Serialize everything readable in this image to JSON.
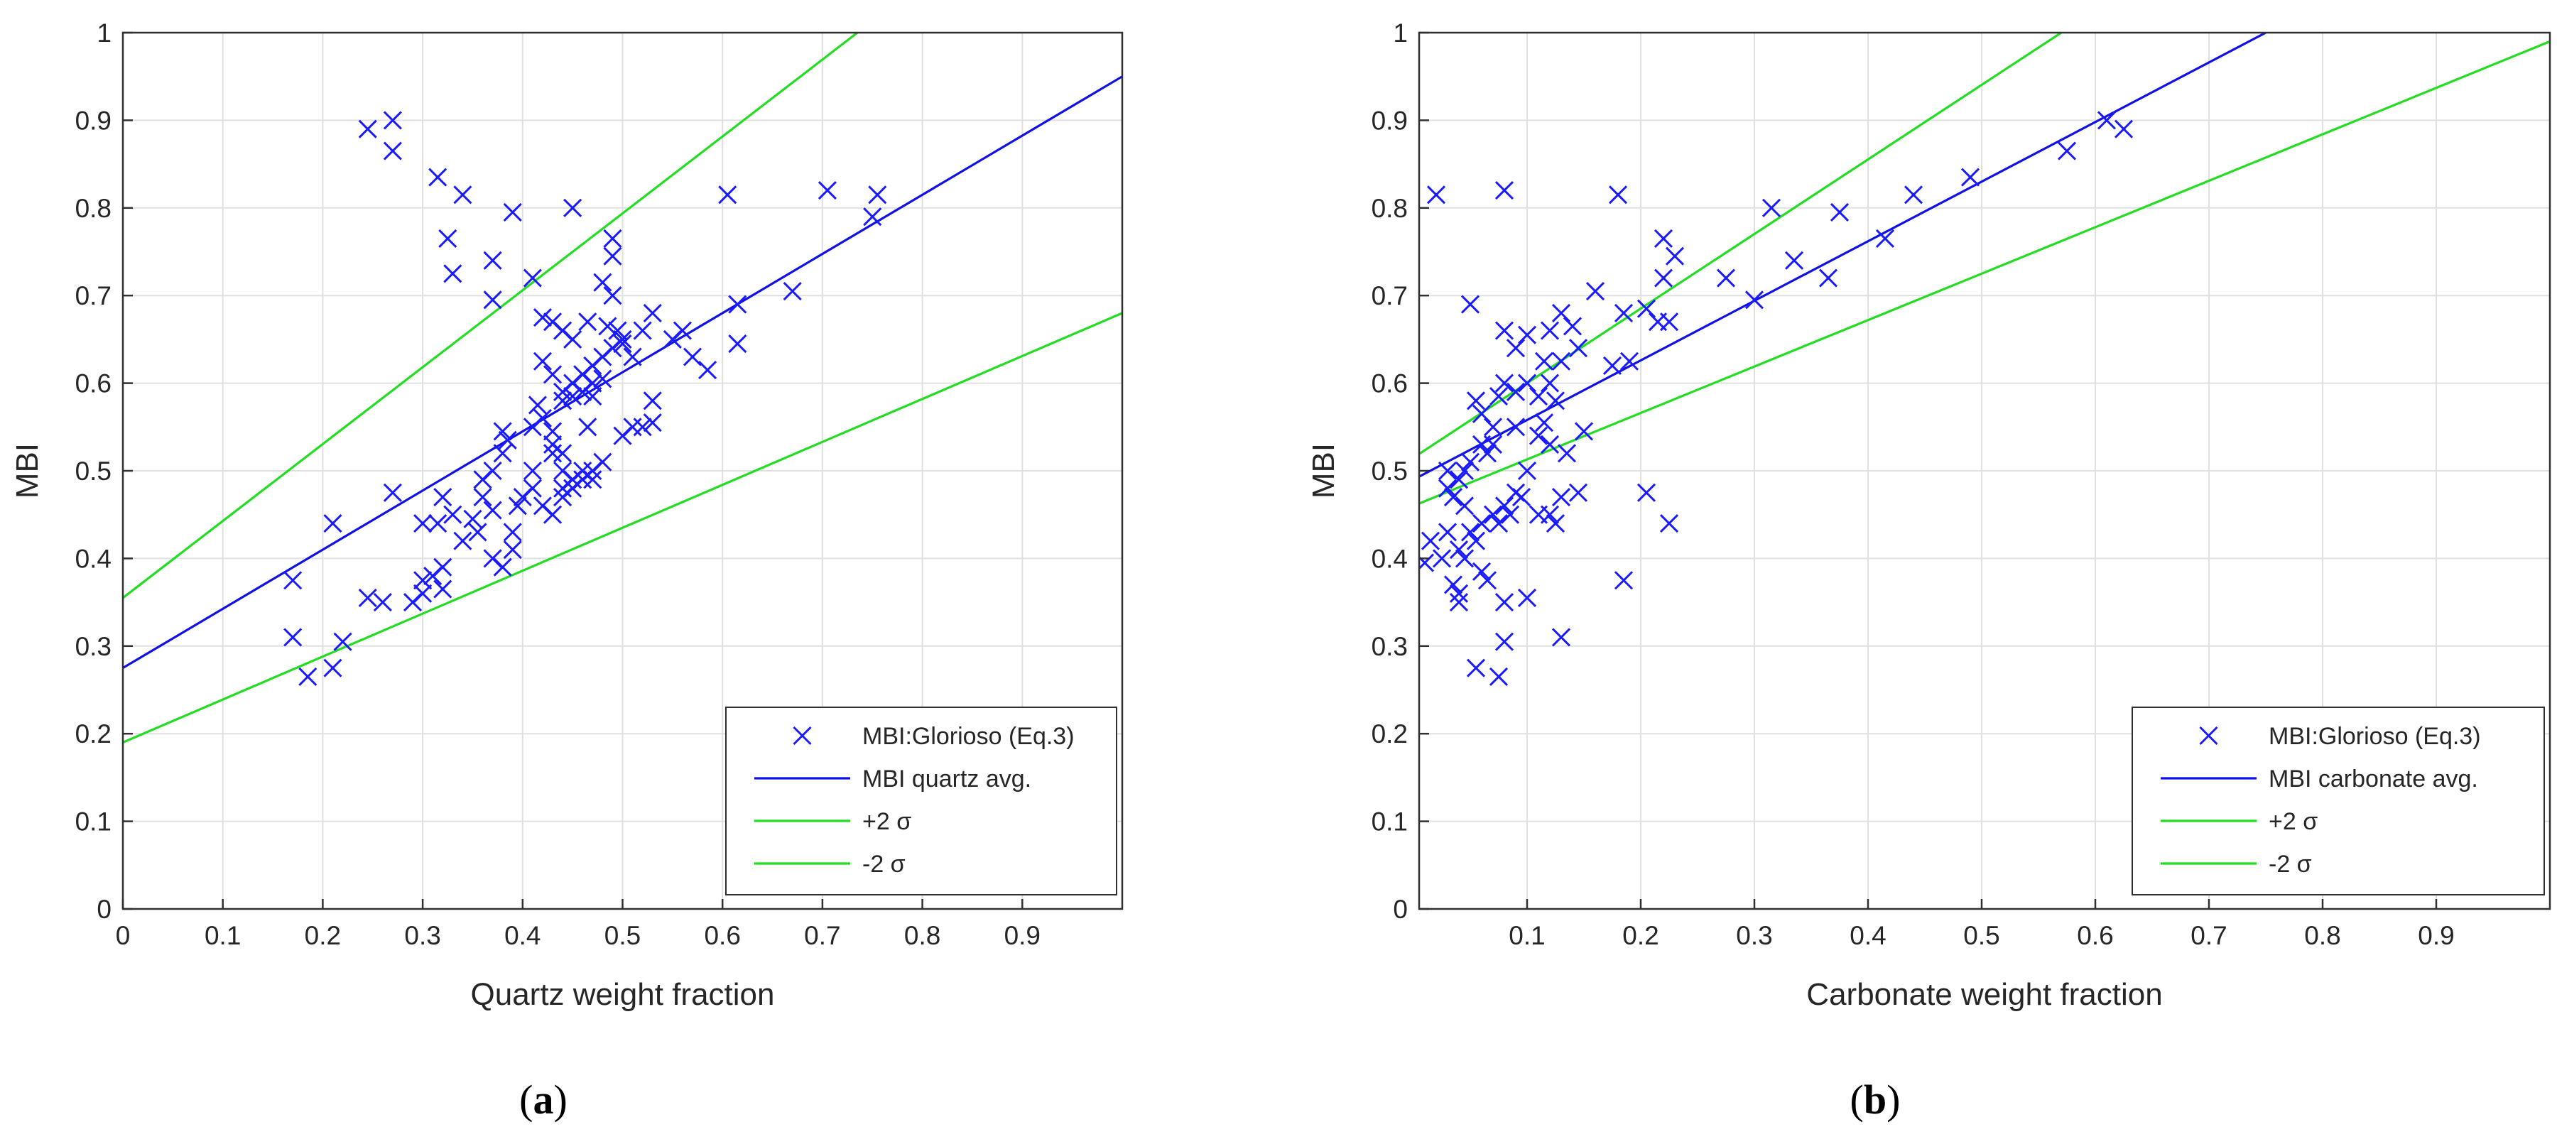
{
  "figure": {
    "panels": [
      {
        "caption_letter": "a",
        "caption_open": "(",
        "caption_close": ")"
      },
      {
        "caption_letter": "b",
        "caption_open": "(",
        "caption_close": ")"
      }
    ]
  },
  "colors": {
    "markers": "#1a1aff",
    "avg_line": "#1010e8",
    "sigma_line": "#22dd22",
    "grid": "#e0e0e0",
    "axes": "#303030"
  },
  "chart_data": [
    {
      "type": "scatter",
      "title": "",
      "xlabel": "Quartz weight fraction",
      "ylabel": "MBI",
      "xlim": [
        0,
        1
      ],
      "ylim": [
        0,
        1
      ],
      "xticks": [
        0,
        0.1,
        0.2,
        0.3,
        0.4,
        0.5,
        0.6,
        0.7,
        0.8,
        0.9
      ],
      "xtick_labels": [
        "0",
        "0.1",
        "0.2",
        "0.3",
        "0.4",
        "0.5",
        "0.6",
        "0.7",
        "0.8",
        "0.9"
      ],
      "yticks": [
        0,
        0.1,
        0.2,
        0.3,
        0.4,
        0.5,
        0.6,
        0.7,
        0.8,
        0.9,
        1
      ],
      "ytick_labels": [
        "0",
        "0.1",
        "0.2",
        "0.3",
        "0.4",
        "0.5",
        "0.6",
        "0.7",
        "0.8",
        "0.9",
        "1"
      ],
      "grid": true,
      "legend_position": "bottom-right",
      "series": [
        {
          "name": "MBI:Glorioso (Eq.3)",
          "kind": "scatter",
          "marker": "x",
          "points": [
            [
              0.245,
              0.89
            ],
            [
              0.27,
              0.9
            ],
            [
              0.27,
              0.865
            ],
            [
              0.315,
              0.835
            ],
            [
              0.34,
              0.815
            ],
            [
              0.325,
              0.765
            ],
            [
              0.33,
              0.725
            ],
            [
              0.39,
              0.795
            ],
            [
              0.45,
              0.8
            ],
            [
              0.37,
              0.74
            ],
            [
              0.37,
              0.695
            ],
            [
              0.41,
              0.72
            ],
            [
              0.49,
              0.765
            ],
            [
              0.49,
              0.745
            ],
            [
              0.48,
              0.715
            ],
            [
              0.49,
              0.7
            ],
            [
              0.485,
              0.665
            ],
            [
              0.495,
              0.66
            ],
            [
              0.5,
              0.645
            ],
            [
              0.42,
              0.675
            ],
            [
              0.43,
              0.67
            ],
            [
              0.44,
              0.66
            ],
            [
              0.465,
              0.67
            ],
            [
              0.45,
              0.65
            ],
            [
              0.42,
              0.625
            ],
            [
              0.43,
              0.61
            ],
            [
              0.46,
              0.61
            ],
            [
              0.47,
              0.6
            ],
            [
              0.48,
              0.605
            ],
            [
              0.47,
              0.585
            ],
            [
              0.44,
              0.59
            ],
            [
              0.45,
              0.585
            ],
            [
              0.415,
              0.575
            ],
            [
              0.42,
              0.56
            ],
            [
              0.43,
              0.545
            ],
            [
              0.41,
              0.55
            ],
            [
              0.43,
              0.53
            ],
            [
              0.44,
              0.52
            ],
            [
              0.465,
              0.55
            ],
            [
              0.5,
              0.54
            ],
            [
              0.51,
              0.55
            ],
            [
              0.38,
              0.545
            ],
            [
              0.385,
              0.535
            ],
            [
              0.38,
              0.52
            ],
            [
              0.37,
              0.5
            ],
            [
              0.36,
              0.49
            ],
            [
              0.36,
              0.47
            ],
            [
              0.37,
              0.455
            ],
            [
              0.35,
              0.445
            ],
            [
              0.355,
              0.43
            ],
            [
              0.34,
              0.42
            ],
            [
              0.33,
              0.45
            ],
            [
              0.32,
              0.47
            ],
            [
              0.315,
              0.44
            ],
            [
              0.3,
              0.44
            ],
            [
              0.3,
              0.375
            ],
            [
              0.31,
              0.38
            ],
            [
              0.32,
              0.39
            ],
            [
              0.32,
              0.365
            ],
            [
              0.29,
              0.35
            ],
            [
              0.3,
              0.36
            ],
            [
              0.37,
              0.4
            ],
            [
              0.38,
              0.39
            ],
            [
              0.39,
              0.41
            ],
            [
              0.39,
              0.43
            ],
            [
              0.4,
              0.47
            ],
            [
              0.41,
              0.48
            ],
            [
              0.42,
              0.46
            ],
            [
              0.43,
              0.45
            ],
            [
              0.44,
              0.47
            ],
            [
              0.45,
              0.48
            ],
            [
              0.46,
              0.49
            ],
            [
              0.47,
              0.5
            ],
            [
              0.48,
              0.51
            ],
            [
              0.47,
              0.49
            ],
            [
              0.46,
              0.5
            ],
            [
              0.45,
              0.49
            ],
            [
              0.44,
              0.5
            ],
            [
              0.43,
              0.52
            ],
            [
              0.44,
              0.58
            ],
            [
              0.45,
              0.6
            ],
            [
              0.46,
              0.59
            ],
            [
              0.47,
              0.62
            ],
            [
              0.48,
              0.63
            ],
            [
              0.49,
              0.64
            ],
            [
              0.5,
              0.65
            ],
            [
              0.51,
              0.63
            ],
            [
              0.52,
              0.66
            ],
            [
              0.53,
              0.68
            ],
            [
              0.55,
              0.65
            ],
            [
              0.56,
              0.66
            ],
            [
              0.57,
              0.63
            ],
            [
              0.585,
              0.615
            ],
            [
              0.53,
              0.58
            ],
            [
              0.53,
              0.555
            ],
            [
              0.52,
              0.55
            ],
            [
              0.605,
              0.815
            ],
            [
              0.705,
              0.82
            ],
            [
              0.75,
              0.79
            ],
            [
              0.755,
              0.815
            ],
            [
              0.67,
              0.705
            ],
            [
              0.615,
              0.69
            ],
            [
              0.615,
              0.645
            ],
            [
              0.17,
              0.375
            ],
            [
              0.17,
              0.31
            ],
            [
              0.185,
              0.265
            ],
            [
              0.21,
              0.44
            ],
            [
              0.21,
              0.275
            ],
            [
              0.22,
              0.305
            ],
            [
              0.245,
              0.355
            ],
            [
              0.26,
              0.35
            ],
            [
              0.27,
              0.475
            ],
            [
              0.395,
              0.46
            ],
            [
              0.41,
              0.5
            ],
            [
              0.44,
              0.48
            ]
          ]
        },
        {
          "name": "MBI quartz avg.",
          "kind": "line",
          "x": [
            0,
            1
          ],
          "y": [
            0.275,
            0.95
          ]
        },
        {
          "name": "+2 σ",
          "kind": "line",
          "x": [
            0,
            0.735
          ],
          "y": [
            0.355,
            1.0
          ]
        },
        {
          "name": "-2 σ",
          "kind": "line",
          "x": [
            0,
            1
          ],
          "y": [
            0.19,
            0.68
          ]
        }
      ]
    },
    {
      "type": "scatter",
      "title": "",
      "xlabel": "Carbonate weight fraction",
      "ylabel": "MBI",
      "xlim": [
        0.005,
        1
      ],
      "ylim": [
        0,
        1
      ],
      "xticks": [
        0.1,
        0.2,
        0.3,
        0.4,
        0.5,
        0.6,
        0.7,
        0.8,
        0.9
      ],
      "xtick_labels": [
        "0.1",
        "0.2",
        "0.3",
        "0.4",
        "0.5",
        "0.6",
        "0.7",
        "0.8",
        "0.9"
      ],
      "yticks": [
        0,
        0.1,
        0.2,
        0.3,
        0.4,
        0.5,
        0.6,
        0.7,
        0.8,
        0.9,
        1
      ],
      "ytick_labels": [
        "0",
        "0.1",
        "0.2",
        "0.3",
        "0.4",
        "0.5",
        "0.6",
        "0.7",
        "0.8",
        "0.9",
        "1"
      ],
      "grid": true,
      "legend_position": "bottom-right",
      "series": [
        {
          "name": "MBI:Glorioso (Eq.3)",
          "kind": "scatter",
          "marker": "x",
          "points": [
            [
              0.02,
              0.815
            ],
            [
              0.08,
              0.82
            ],
            [
              0.18,
              0.815
            ],
            [
              0.315,
              0.8
            ],
            [
              0.49,
              0.835
            ],
            [
              0.44,
              0.815
            ],
            [
              0.375,
              0.795
            ],
            [
              0.335,
              0.74
            ],
            [
              0.365,
              0.72
            ],
            [
              0.415,
              0.765
            ],
            [
              0.575,
              0.865
            ],
            [
              0.61,
              0.9
            ],
            [
              0.625,
              0.89
            ],
            [
              0.22,
              0.765
            ],
            [
              0.23,
              0.745
            ],
            [
              0.22,
              0.72
            ],
            [
              0.275,
              0.72
            ],
            [
              0.3,
              0.695
            ],
            [
              0.16,
              0.705
            ],
            [
              0.215,
              0.67
            ],
            [
              0.225,
              0.67
            ],
            [
              0.205,
              0.685
            ],
            [
              0.185,
              0.68
            ],
            [
              0.175,
              0.62
            ],
            [
              0.19,
              0.625
            ],
            [
              0.05,
              0.69
            ],
            [
              0.08,
              0.66
            ],
            [
              0.09,
              0.64
            ],
            [
              0.1,
              0.655
            ],
            [
              0.12,
              0.66
            ],
            [
              0.14,
              0.665
            ],
            [
              0.145,
              0.64
            ],
            [
              0.13,
              0.68
            ],
            [
              0.115,
              0.625
            ],
            [
              0.1,
              0.6
            ],
            [
              0.09,
              0.59
            ],
            [
              0.08,
              0.6
            ],
            [
              0.075,
              0.585
            ],
            [
              0.11,
              0.585
            ],
            [
              0.12,
              0.6
            ],
            [
              0.125,
              0.58
            ],
            [
              0.13,
              0.625
            ],
            [
              0.06,
              0.565
            ],
            [
              0.055,
              0.58
            ],
            [
              0.07,
              0.55
            ],
            [
              0.09,
              0.55
            ],
            [
              0.11,
              0.54
            ],
            [
              0.115,
              0.555
            ],
            [
              0.135,
              0.52
            ],
            [
              0.15,
              0.545
            ],
            [
              0.12,
              0.53
            ],
            [
              0.1,
              0.5
            ],
            [
              0.06,
              0.53
            ],
            [
              0.065,
              0.52
            ],
            [
              0.045,
              0.5
            ],
            [
              0.03,
              0.5
            ],
            [
              0.035,
              0.47
            ],
            [
              0.04,
              0.49
            ],
            [
              0.045,
              0.46
            ],
            [
              0.05,
              0.43
            ],
            [
              0.055,
              0.42
            ],
            [
              0.04,
              0.41
            ],
            [
              0.045,
              0.4
            ],
            [
              0.04,
              0.35
            ],
            [
              0.04,
              0.36
            ],
            [
              0.035,
              0.37
            ],
            [
              0.025,
              0.4
            ],
            [
              0.01,
              0.395
            ],
            [
              0.015,
              0.42
            ],
            [
              0.03,
              0.43
            ],
            [
              0.06,
              0.44
            ],
            [
              0.07,
              0.45
            ],
            [
              0.075,
              0.44
            ],
            [
              0.08,
              0.46
            ],
            [
              0.085,
              0.45
            ],
            [
              0.09,
              0.475
            ],
            [
              0.095,
              0.47
            ],
            [
              0.11,
              0.45
            ],
            [
              0.12,
              0.45
            ],
            [
              0.125,
              0.44
            ],
            [
              0.13,
              0.47
            ],
            [
              0.145,
              0.475
            ],
            [
              0.06,
              0.385
            ],
            [
              0.065,
              0.375
            ],
            [
              0.08,
              0.35
            ],
            [
              0.08,
              0.305
            ],
            [
              0.1,
              0.355
            ],
            [
              0.13,
              0.31
            ],
            [
              0.055,
              0.275
            ],
            [
              0.075,
              0.265
            ],
            [
              0.185,
              0.375
            ],
            [
              0.205,
              0.475
            ],
            [
              0.225,
              0.44
            ],
            [
              0.03,
              0.48
            ],
            [
              0.05,
              0.51
            ],
            [
              0.07,
              0.53
            ]
          ]
        },
        {
          "name": "MBI carbonate avg.",
          "kind": "line",
          "x": [
            0,
            0.75
          ],
          "y": [
            0.49,
            1.0
          ]
        },
        {
          "name": "+2 σ",
          "kind": "line",
          "x": [
            0,
            0.57
          ],
          "y": [
            0.515,
            1.0
          ]
        },
        {
          "name": "-2 σ",
          "kind": "line",
          "x": [
            0,
            1
          ],
          "y": [
            0.46,
            0.99
          ]
        }
      ]
    }
  ]
}
